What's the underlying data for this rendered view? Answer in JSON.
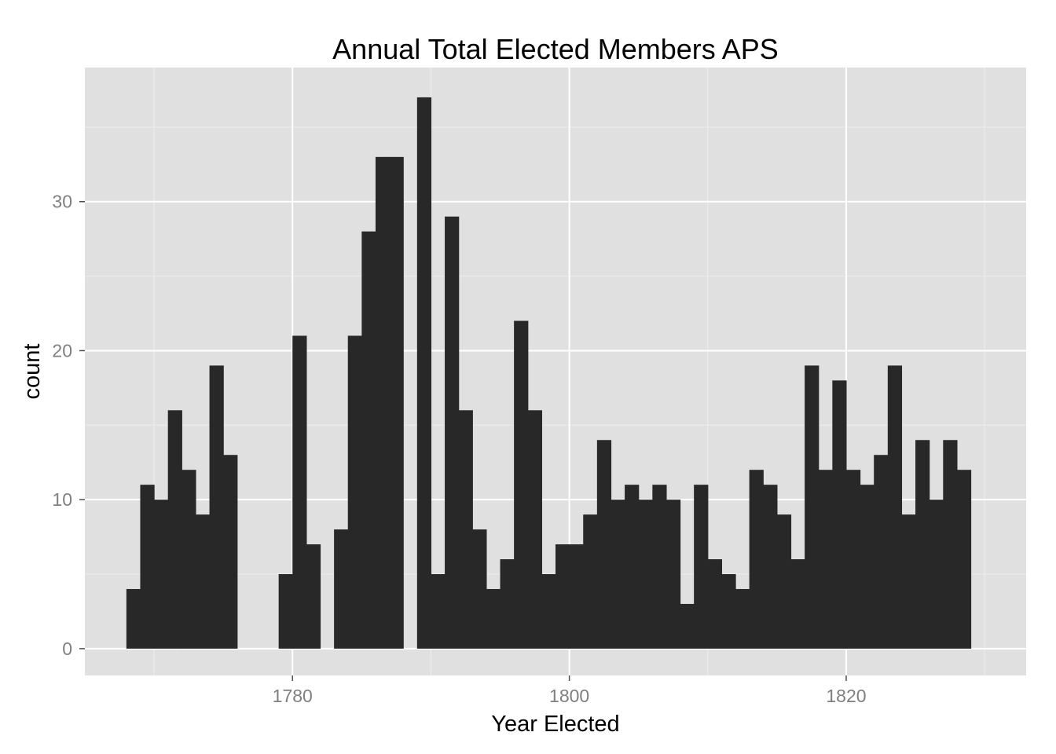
{
  "chart_data": {
    "type": "bar",
    "title": "Annual Total Elected Members APS",
    "xlabel": "Year Elected",
    "ylabel": "count",
    "xlim": [
      1765,
      1833
    ],
    "ylim": [
      -1.8,
      39
    ],
    "x_ticks": [
      1780,
      1800,
      1820
    ],
    "y_ticks": [
      0,
      10,
      20,
      30
    ],
    "x_tick_labels": [
      "1780",
      "1800",
      "1820"
    ],
    "y_tick_labels": [
      "0",
      "10",
      "20",
      "30"
    ],
    "bin_width": 1,
    "bins_start": 1768,
    "values": [
      4,
      11,
      10,
      16,
      12,
      9,
      19,
      13,
      0,
      0,
      0,
      5,
      21,
      7,
      0,
      8,
      21,
      28,
      33,
      33,
      0,
      37,
      5,
      29,
      16,
      8,
      4,
      6,
      22,
      16,
      5,
      7,
      7,
      9,
      14,
      10,
      11,
      10,
      11,
      10,
      3,
      11,
      6,
      5,
      4,
      12,
      11,
      9,
      6,
      19,
      12,
      18,
      12,
      11,
      13,
      19,
      9,
      14,
      10,
      14,
      12
    ],
    "grid": true,
    "background": "#e0e0e0",
    "bar_color": "#282828",
    "grid_major_color": "#ffffff",
    "grid_minor_color": "#eeeeee"
  }
}
